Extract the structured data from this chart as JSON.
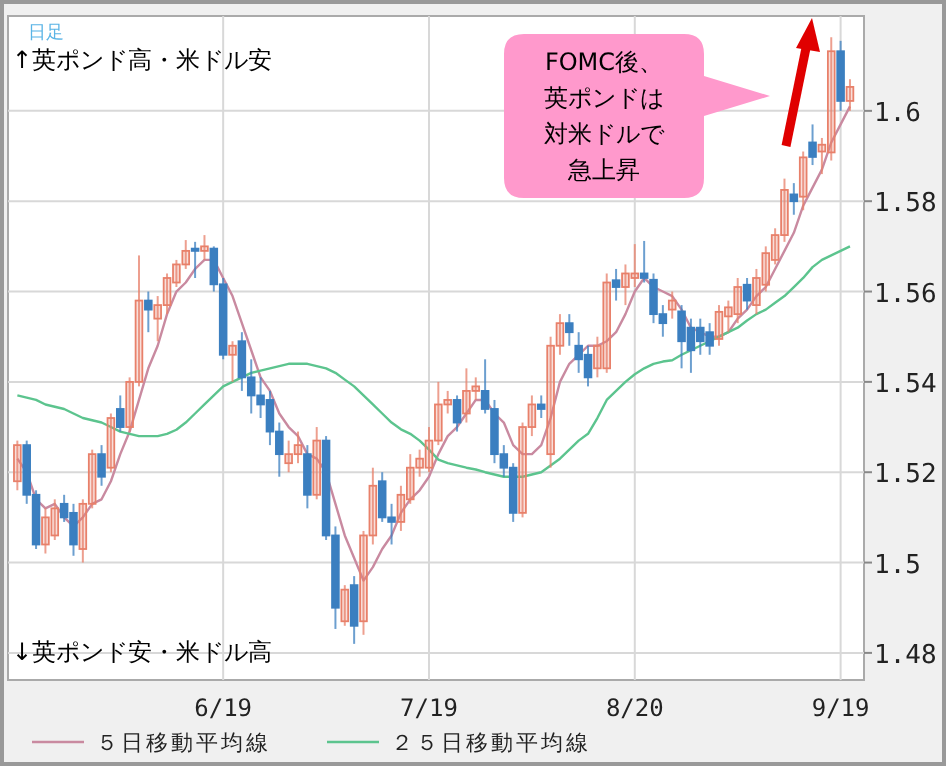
{
  "chart_data": {
    "type": "candlestick",
    "categories": [
      null,
      null,
      null,
      null,
      null,
      null,
      null,
      null,
      null,
      null,
      null,
      null,
      null,
      null,
      null,
      null,
      null,
      null,
      null,
      null,
      null,
      null,
      "6/19",
      null,
      null,
      null,
      null,
      null,
      null,
      null,
      null,
      null,
      null,
      null,
      null,
      null,
      null,
      null,
      null,
      null,
      null,
      null,
      null,
      null,
      "7/19",
      null,
      null,
      null,
      null,
      null,
      null,
      null,
      null,
      null,
      null,
      null,
      null,
      null,
      null,
      null,
      null,
      null,
      null,
      null,
      null,
      null,
      "8/20",
      null,
      null,
      null,
      null,
      null,
      null,
      null,
      null,
      null,
      null,
      null,
      null,
      null,
      null,
      null,
      null,
      null,
      null,
      null,
      null,
      null,
      "9/19",
      null
    ],
    "ohlc": [
      [
        1.518,
        1.527,
        1.516,
        1.526
      ],
      [
        1.526,
        1.527,
        1.513,
        1.515
      ],
      [
        1.515,
        1.516,
        1.503,
        1.504
      ],
      [
        1.504,
        1.512,
        1.502,
        1.51
      ],
      [
        1.506,
        1.514,
        1.505,
        1.512
      ],
      [
        1.513,
        1.515,
        1.509,
        1.51
      ],
      [
        1.511,
        1.513,
        1.5015,
        1.504
      ],
      [
        1.503,
        1.514,
        1.5,
        1.513
      ],
      [
        1.513,
        1.525,
        1.512,
        1.524
      ],
      [
        1.524,
        1.526,
        1.517,
        1.519
      ],
      [
        1.521,
        1.533,
        1.52,
        1.532
      ],
      [
        1.534,
        1.537,
        1.529,
        1.53
      ],
      [
        1.53,
        1.541,
        1.529,
        1.54
      ],
      [
        1.54,
        1.568,
        1.539,
        1.558
      ],
      [
        1.558,
        1.56,
        1.551,
        1.556
      ],
      [
        1.554,
        1.559,
        1.549,
        1.557
      ],
      [
        1.557,
        1.564,
        1.555,
        1.563
      ],
      [
        1.562,
        1.567,
        1.561,
        1.566
      ],
      [
        1.566,
        1.5714,
        1.565,
        1.569
      ],
      [
        1.5695,
        1.571,
        1.563,
        1.569
      ],
      [
        1.569,
        1.5725,
        1.567,
        1.57
      ],
      [
        1.5695,
        1.57,
        1.56,
        1.5616
      ],
      [
        1.5616,
        1.563,
        1.545,
        1.546
      ],
      [
        1.546,
        1.549,
        1.54,
        1.548
      ],
      [
        1.549,
        1.551,
        1.538,
        1.541
      ],
      [
        1.541,
        1.545,
        1.533,
        1.537
      ],
      [
        1.537,
        1.541,
        1.532,
        1.535
      ],
      [
        1.536,
        1.538,
        1.526,
        1.529
      ],
      [
        1.529,
        1.531,
        1.519,
        1.524
      ],
      [
        1.522,
        1.527,
        1.52,
        1.524
      ],
      [
        1.524,
        1.529,
        1.522,
        1.526
      ],
      [
        1.524,
        1.526,
        1.512,
        1.515
      ],
      [
        1.515,
        1.53,
        1.514,
        1.527
      ],
      [
        1.527,
        1.528,
        1.505,
        1.506
      ],
      [
        1.506,
        1.508,
        1.4853,
        1.49
      ],
      [
        1.487,
        1.495,
        1.486,
        1.494
      ],
      [
        1.495,
        1.497,
        1.482,
        1.486
      ],
      [
        1.487,
        1.507,
        1.484,
        1.506
      ],
      [
        1.506,
        1.521,
        1.504,
        1.517
      ],
      [
        1.518,
        1.52,
        1.509,
        1.51
      ],
      [
        1.51,
        1.513,
        1.504,
        1.509
      ],
      [
        1.509,
        1.517,
        1.507,
        1.515
      ],
      [
        1.514,
        1.524,
        1.513,
        1.521
      ],
      [
        1.521,
        1.525,
        1.519,
        1.523
      ],
      [
        1.521,
        1.53,
        1.52,
        1.527
      ],
      [
        1.527,
        1.54,
        1.526,
        1.535
      ],
      [
        1.535,
        1.538,
        1.533,
        1.536
      ],
      [
        1.536,
        1.537,
        1.529,
        1.531
      ],
      [
        1.533,
        1.543,
        1.531,
        1.538
      ],
      [
        1.538,
        1.541,
        1.536,
        1.539
      ],
      [
        1.538,
        1.545,
        1.533,
        1.534
      ],
      [
        1.534,
        1.536,
        1.522,
        1.524
      ],
      [
        1.524,
        1.526,
        1.519,
        1.521
      ],
      [
        1.521,
        1.522,
        1.509,
        1.511
      ],
      [
        1.511,
        1.531,
        1.51,
        1.53
      ],
      [
        1.53,
        1.537,
        1.528,
        1.535
      ],
      [
        1.535,
        1.537,
        1.532,
        1.534
      ],
      [
        1.524,
        1.55,
        1.521,
        1.548
      ],
      [
        1.548,
        1.555,
        1.546,
        1.553
      ],
      [
        1.553,
        1.555,
        1.548,
        1.551
      ],
      [
        1.548,
        1.551,
        1.542,
        1.545
      ],
      [
        1.546,
        1.548,
        1.539,
        1.541
      ],
      [
        1.543,
        1.55,
        1.541,
        1.548
      ],
      [
        1.543,
        1.564,
        1.542,
        1.562
      ],
      [
        1.5625,
        1.565,
        1.558,
        1.561
      ],
      [
        1.561,
        1.566,
        1.557,
        1.564
      ],
      [
        1.563,
        1.5705,
        1.561,
        1.564
      ],
      [
        1.564,
        1.5712,
        1.562,
        1.563
      ],
      [
        1.5626,
        1.564,
        1.553,
        1.555
      ],
      [
        1.555,
        1.557,
        1.55,
        1.553
      ],
      [
        1.556,
        1.56,
        1.554,
        1.558
      ],
      [
        1.5556,
        1.557,
        1.543,
        1.549
      ],
      [
        1.552,
        1.554,
        1.542,
        1.547
      ],
      [
        1.552,
        1.554,
        1.546,
        1.549
      ],
      [
        1.551,
        1.553,
        1.546,
        1.548
      ],
      [
        1.5495,
        1.557,
        1.548,
        1.5555
      ],
      [
        1.5545,
        1.558,
        1.551,
        1.5565
      ],
      [
        1.555,
        1.563,
        1.553,
        1.561
      ],
      [
        1.5615,
        1.563,
        1.556,
        1.558
      ],
      [
        1.557,
        1.565,
        1.555,
        1.563
      ],
      [
        1.5615,
        1.57,
        1.56,
        1.5685
      ],
      [
        1.567,
        1.574,
        1.566,
        1.5725
      ],
      [
        1.5725,
        1.585,
        1.571,
        1.5825
      ],
      [
        1.5815,
        1.584,
        1.577,
        1.58
      ],
      [
        1.581,
        1.591,
        1.578,
        1.5897
      ],
      [
        1.593,
        1.597,
        1.588,
        1.5898
      ],
      [
        1.591,
        1.594,
        1.586,
        1.5925
      ],
      [
        1.5908,
        1.6163,
        1.589,
        1.6132
      ],
      [
        1.6132,
        1.6155,
        1.6,
        1.6022
      ],
      [
        1.6022,
        1.607,
        1.6,
        1.6053
      ]
    ],
    "colors": [
      "#e8806a",
      "#3b7fc0",
      "#3b7fc0",
      "#e8806a",
      "#e8806a",
      "#3b7fc0",
      "#3b7fc0",
      "#e8806a",
      "#e8806a",
      "#3b7fc0",
      "#e8806a",
      "#3b7fc0",
      "#e8806a",
      "#e8806a",
      "#3b7fc0",
      "#e8806a",
      "#e8806a",
      "#e8806a",
      "#e8806a",
      "#3b7fc0",
      "#e8806a",
      "#3b7fc0",
      "#3b7fc0",
      "#e8806a",
      "#3b7fc0",
      "#3b7fc0",
      "#3b7fc0",
      "#3b7fc0",
      "#3b7fc0",
      "#e8806a",
      "#e8806a",
      "#3b7fc0",
      "#e8806a",
      "#3b7fc0",
      "#3b7fc0",
      "#e8806a",
      "#3b7fc0",
      "#e8806a",
      "#e8806a",
      "#3b7fc0",
      "#3b7fc0",
      "#e8806a",
      "#e8806a",
      "#e8806a",
      "#e8806a",
      "#e8806a",
      "#e8806a",
      "#3b7fc0",
      "#e8806a",
      "#e8806a",
      "#3b7fc0",
      "#3b7fc0",
      "#3b7fc0",
      "#3b7fc0",
      "#e8806a",
      "#e8806a",
      "#3b7fc0",
      "#e8806a",
      "#e8806a",
      "#3b7fc0",
      "#3b7fc0",
      "#3b7fc0",
      "#e8806a",
      "#e8806a",
      "#3b7fc0",
      "#e8806a",
      "#e8806a",
      "#3b7fc0",
      "#3b7fc0",
      "#3b7fc0",
      "#e8806a",
      "#3b7fc0",
      "#3b7fc0",
      "#3b7fc0",
      "#3b7fc0",
      "#e8806a",
      "#e8806a",
      "#e8806a",
      "#3b7fc0",
      "#e8806a",
      "#e8806a",
      "#e8806a",
      "#e8806a",
      "#3b7fc0",
      "#e8806a",
      "#3b7fc0",
      "#e8806a",
      "#e8806a",
      "#3b7fc0",
      "#e8806a"
    ],
    "series": [
      {
        "type": "line",
        "name": "５日移動平均線",
        "color": "#c98aa0",
        "values": [
          1.523,
          1.52,
          1.514,
          1.512,
          1.513,
          1.51,
          1.508,
          1.51,
          1.513,
          1.514,
          1.518,
          1.524,
          1.529,
          1.536,
          1.543,
          1.548,
          1.555,
          1.56,
          1.562,
          1.565,
          1.567,
          1.567,
          1.563,
          1.559,
          1.553,
          1.547,
          1.541,
          1.538,
          1.533,
          1.53,
          1.528,
          1.524,
          1.523,
          1.52,
          1.513,
          1.506,
          1.501,
          1.496,
          1.499,
          1.503,
          1.506,
          1.511,
          1.514,
          1.516,
          1.519,
          1.524,
          1.528,
          1.53,
          1.533,
          1.536,
          1.536,
          1.533,
          1.531,
          1.526,
          1.524,
          1.524,
          1.526,
          1.532,
          1.54,
          1.544,
          1.546,
          1.548,
          1.548,
          1.549,
          1.551,
          1.555,
          1.56,
          1.563,
          1.561,
          1.56,
          1.559,
          1.556,
          1.552,
          1.551,
          1.55,
          1.55,
          1.551,
          1.554,
          1.556,
          1.559,
          1.561,
          1.565,
          1.569,
          1.573,
          1.579,
          1.583,
          1.587,
          1.593,
          1.597,
          1.601
        ]
      },
      {
        "type": "line",
        "name": "２５日移動平均線",
        "color": "#5cc48e",
        "values": [
          1.537,
          1.5365,
          1.536,
          1.535,
          1.5345,
          1.534,
          1.533,
          1.532,
          1.5315,
          1.531,
          1.53,
          1.529,
          1.5285,
          1.528,
          1.528,
          1.528,
          1.5285,
          1.5294,
          1.531,
          1.533,
          1.535,
          1.537,
          1.539,
          1.54,
          1.541,
          1.542,
          1.5425,
          1.543,
          1.5435,
          1.544,
          1.544,
          1.544,
          1.5435,
          1.543,
          1.542,
          1.5405,
          1.539,
          1.537,
          1.535,
          1.533,
          1.531,
          1.5295,
          1.5285,
          1.527,
          1.525,
          1.5228,
          1.522,
          1.5215,
          1.521,
          1.5206,
          1.52,
          1.5195,
          1.519,
          1.519,
          1.519,
          1.5195,
          1.52,
          1.5215,
          1.523,
          1.525,
          1.527,
          1.5285,
          1.532,
          1.536,
          1.538,
          1.54,
          1.5417,
          1.543,
          1.544,
          1.5445,
          1.5448,
          1.546,
          1.547,
          1.548,
          1.549,
          1.55,
          1.551,
          1.552,
          1.5536,
          1.555,
          1.556,
          1.5575,
          1.559,
          1.561,
          1.563,
          1.5654,
          1.567,
          1.568,
          1.569,
          1.57
        ]
      }
    ],
    "ylim": [
      1.474,
      1.621
    ],
    "yticks": [
      1.48,
      1.5,
      1.52,
      1.54,
      1.56,
      1.58,
      1.6
    ],
    "grid": true,
    "legend": "bottom",
    "annotations": [
      "日足",
      "↑英ポンド高・米ドル安",
      "↓英ポンド安・米ドル高",
      "FOMC後、",
      "英ポンドは",
      "対米ドルで",
      "急上昇"
    ]
  }
}
